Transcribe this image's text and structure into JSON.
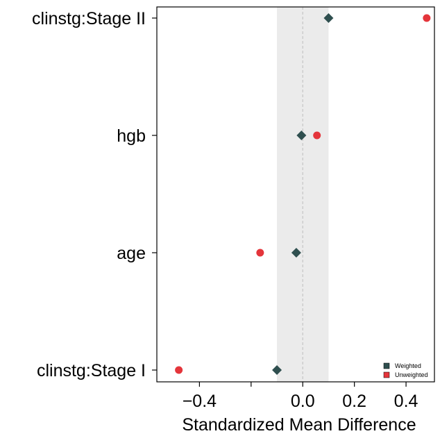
{
  "chart_data": {
    "type": "scatter",
    "title": "",
    "xlabel": "Standardized Mean Difference",
    "ylabel": "",
    "xlim": [
      -0.565,
      0.51
    ],
    "x_ticks": [
      -0.4,
      -0.2,
      0.0,
      0.2,
      0.4
    ],
    "x_tick_labels": [
      "−0.4",
      "",
      "0.0",
      "0.2",
      "0.4"
    ],
    "categories": [
      "clinstg:Stage II",
      "hgb",
      "age",
      "clinstg:Stage I"
    ],
    "balance_band": [
      -0.1,
      0.1
    ],
    "reference_line_x": 0.0,
    "grid": false,
    "legend_position": "bottom-right",
    "series": [
      {
        "name": "Weighted",
        "marker": "diamond",
        "color": "#2f4f4f",
        "values": [
          0.1,
          -0.005,
          -0.025,
          -0.1
        ]
      },
      {
        "name": "Unweighted",
        "marker": "circle",
        "color": "#e4353b",
        "values": [
          0.48,
          0.055,
          -0.165,
          -0.48
        ]
      }
    ]
  }
}
